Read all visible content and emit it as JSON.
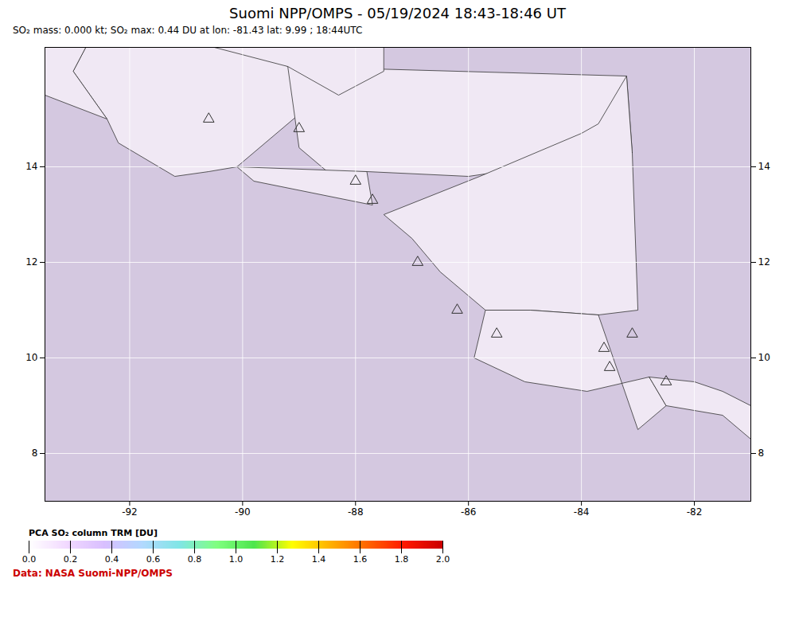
{
  "chart_data": {
    "type": "scatter",
    "title": "Suomi NPP/OMPS - 05/19/2024 18:43-18:46 UT",
    "subtitle": "SO₂ mass: 0.000 kt; SO₂ max: 0.44 DU at lon: -81.43 lat: 9.99 ; 18:44UTC",
    "annotations": [
      {
        "text": "Data: NASA Suomi-NPP/OMPS",
        "color": "#cc0000"
      }
    ],
    "x": [
      -90.6,
      -89.0,
      -88.0,
      -87.7,
      -86.9,
      -86.2,
      -85.5,
      -83.6,
      -83.5,
      -83.1,
      -82.5
    ],
    "y": [
      15.0,
      14.8,
      13.7,
      13.3,
      12.0,
      11.0,
      10.5,
      10.2,
      9.8,
      10.5,
      9.5
    ],
    "color": "#333333",
    "marker": "triangle",
    "xlim": [
      -93.5,
      -81.0
    ],
    "ylim": [
      7.0,
      16.5
    ],
    "xticks": [
      -92,
      -90,
      -88,
      -86,
      -84,
      -82
    ],
    "yticks": [
      8,
      10,
      12,
      14
    ],
    "grid": true,
    "land": {
      "color": "#f0e8f4",
      "polygons": [
        [
          [
            -92.2,
            17.8
          ],
          [
            -89.2,
            16.1
          ],
          [
            -88.5,
            15.9
          ],
          [
            -88.3,
            15.5
          ],
          [
            -89.0,
            15.1
          ],
          [
            -90.1,
            14.0
          ],
          [
            -90.6,
            13.9
          ],
          [
            -91.2,
            13.8
          ],
          [
            -92.2,
            14.5
          ],
          [
            -92.4,
            15.0
          ],
          [
            -93.0,
            16.0
          ],
          [
            -92.2,
            17.8
          ]
        ],
        [
          [
            -89.2,
            16.1
          ],
          [
            -83.2,
            15.9
          ],
          [
            -83.1,
            14.3
          ],
          [
            -86.0,
            13.8
          ],
          [
            -87.8,
            13.9
          ],
          [
            -88.5,
            13.9
          ],
          [
            -89.0,
            14.4
          ],
          [
            -89.2,
            16.1
          ]
        ],
        [
          [
            -90.1,
            14.0
          ],
          [
            -87.8,
            13.9
          ],
          [
            -87.7,
            13.2
          ],
          [
            -89.8,
            13.7
          ],
          [
            -90.1,
            14.0
          ]
        ],
        [
          [
            -83.1,
            14.3
          ],
          [
            -83.2,
            15.9
          ],
          [
            -83.7,
            14.9
          ],
          [
            -84.0,
            14.7
          ],
          [
            -85.8,
            13.8
          ],
          [
            -87.5,
            13.0
          ],
          [
            -87.0,
            12.5
          ],
          [
            -86.5,
            11.8
          ],
          [
            -85.7,
            11.0
          ],
          [
            -84.9,
            11.0
          ],
          [
            -83.7,
            10.9
          ],
          [
            -83.0,
            11.0
          ],
          [
            -83.1,
            14.3
          ]
        ],
        [
          [
            -83.7,
            10.9
          ],
          [
            -84.9,
            11.0
          ],
          [
            -85.7,
            11.0
          ],
          [
            -85.9,
            10.0
          ],
          [
            -85.0,
            9.5
          ],
          [
            -83.9,
            9.3
          ],
          [
            -82.8,
            9.6
          ],
          [
            -82.5,
            9.0
          ],
          [
            -83.0,
            8.5
          ],
          [
            -83.7,
            10.9
          ]
        ],
        [
          [
            -82.8,
            9.6
          ],
          [
            -82.5,
            9.0
          ],
          [
            -81.5,
            8.8
          ],
          [
            -81.0,
            8.3
          ],
          [
            -81.0,
            9.0
          ],
          [
            -81.5,
            9.3
          ],
          [
            -82.0,
            9.5
          ],
          [
            -82.8,
            9.6
          ]
        ],
        [
          [
            -93.5,
            17.8
          ],
          [
            -92.2,
            17.8
          ],
          [
            -93.0,
            16.0
          ],
          [
            -92.4,
            15.0
          ],
          [
            -93.5,
            15.5
          ],
          [
            -93.5,
            17.8
          ]
        ],
        [
          [
            -90.5,
            16.5
          ],
          [
            -89.2,
            16.1
          ],
          [
            -88.3,
            15.5
          ],
          [
            -87.5,
            16.0
          ],
          [
            -87.5,
            17.5
          ],
          [
            -88.0,
            17.8
          ],
          [
            -90.5,
            16.5
          ]
        ]
      ]
    },
    "colorbar": {
      "label": "PCA SO₂ column TRM [DU]",
      "lim": [
        0.0,
        2.0
      ],
      "ticks": [
        {
          "value": 0.0,
          "label": "0.0"
        },
        0.2,
        0.4,
        0.6,
        0.8,
        {
          "value": 1.0,
          "label": "1.0"
        },
        1.2,
        1.4,
        1.6,
        1.8,
        {
          "value": 2.0,
          "label": "2.0"
        }
      ]
    }
  }
}
